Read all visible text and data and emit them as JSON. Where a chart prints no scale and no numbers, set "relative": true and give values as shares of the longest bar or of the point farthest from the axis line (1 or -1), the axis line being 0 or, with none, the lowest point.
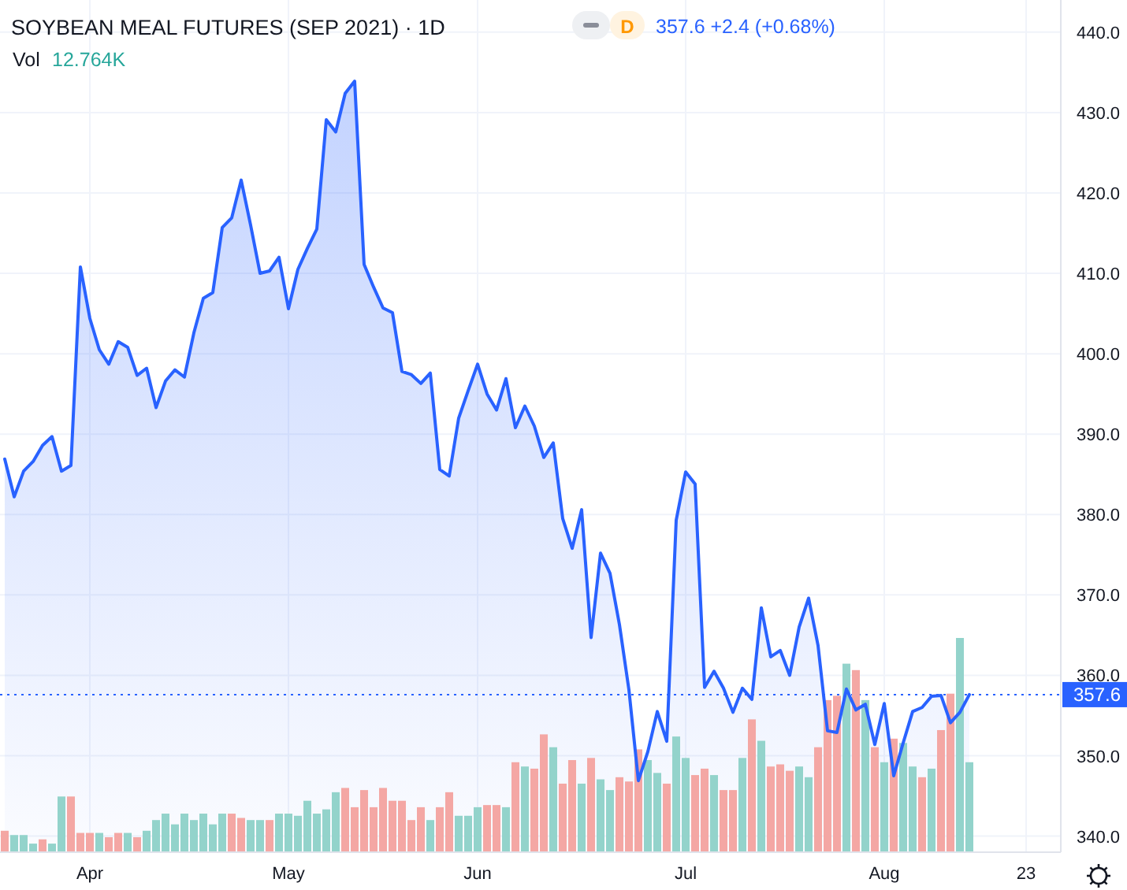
{
  "chart_data": [
    {
      "type": "area",
      "title": "SOYBEAN MEAL FUTURES (SEP 2021) · 1D",
      "annotations": [
        "D",
        "357.6 +2.4 (+0.68%)",
        "Vol",
        "12.764K"
      ],
      "categories": [
        null,
        null,
        null,
        null,
        null,
        null,
        null,
        null,
        null,
        "Apr",
        null,
        null,
        null,
        null,
        null,
        null,
        null,
        null,
        null,
        null,
        null,
        null,
        null,
        null,
        null,
        null,
        null,
        null,
        null,
        null,
        "May",
        null,
        null,
        null,
        null,
        null,
        null,
        null,
        null,
        null,
        null,
        null,
        null,
        null,
        null,
        null,
        null,
        null,
        null,
        null,
        "Jun",
        null,
        null,
        null,
        null,
        null,
        null,
        null,
        null,
        null,
        null,
        null,
        null,
        null,
        null,
        null,
        null,
        null,
        null,
        null,
        null,
        null,
        "Jul",
        null,
        null,
        null,
        null,
        null,
        null,
        null,
        null,
        null,
        null,
        null,
        null,
        null,
        null,
        null,
        null,
        null,
        null,
        null,
        null,
        "Aug",
        null,
        null,
        null,
        null,
        null,
        null,
        null,
        null,
        null,
        null,
        null,
        null,
        null,
        null,
        "23",
        null,
        null,
        null
      ],
      "color": "#2962ff",
      "values": [
        386.9,
        382.2,
        385.4,
        386.6,
        388.6,
        389.7,
        385.4,
        386.1,
        410.8,
        404.4,
        400.5,
        398.7,
        401.5,
        400.8,
        397.3,
        398.2,
        393.3,
        396.6,
        398.0,
        397.1,
        402.6,
        406.9,
        407.6,
        415.7,
        416.9,
        421.6,
        416.0,
        410.0,
        410.3,
        412.0,
        405.6,
        410.5,
        413.1,
        415.5,
        429.1,
        427.6,
        432.4,
        433.9,
        411.1,
        408.3,
        405.7,
        405.1,
        397.8,
        397.4,
        396.3,
        397.6,
        385.6,
        384.8,
        392.0,
        395.4,
        398.7,
        395.0,
        393.0,
        396.9,
        390.8,
        393.5,
        391.0,
        387.1,
        388.9,
        379.5,
        375.8,
        380.6,
        364.7,
        375.2,
        372.7,
        366.3,
        358.2,
        346.9,
        350.5,
        355.5,
        351.8,
        379.3,
        385.3,
        383.8,
        358.5,
        360.5,
        358.4,
        355.4,
        358.4,
        357.0,
        368.4,
        362.3,
        363.1,
        360.0,
        366.0,
        369.6,
        363.7,
        353.1,
        352.9,
        358.3,
        355.7,
        356.4,
        351.4,
        356.5,
        347.5,
        351.6,
        355.5,
        356.0,
        357.4,
        357.5,
        354.1,
        355.4,
        357.6,
        null,
        null,
        null,
        null,
        null,
        null,
        null,
        null,
        null
      ],
      "ylim": [
        338,
        444
      ],
      "yticks": [
        {
          "value": 340,
          "label": "340.0"
        },
        {
          "value": 350,
          "label": "350.0"
        },
        {
          "value": 360,
          "label": "360.0"
        },
        {
          "value": 370,
          "label": "370.0"
        },
        {
          "value": 380,
          "label": "380.0"
        },
        {
          "value": 390,
          "label": "390.0"
        },
        {
          "value": 400,
          "label": "400.0"
        },
        {
          "value": 410,
          "label": "410.0"
        },
        {
          "value": 420,
          "label": "420.0"
        },
        {
          "value": 430,
          "label": "430.0"
        },
        {
          "value": 440,
          "label": "440.0"
        }
      ],
      "ref_lines": [
        {
          "axis": "y",
          "value": 357.6,
          "label": "357.6",
          "color": "#2962ff",
          "line_style": "dotted"
        }
      ],
      "grid": true
    },
    {
      "type": "bar",
      "relative": true,
      "values": [
        0.1,
        0.08,
        0.08,
        0.04,
        0.06,
        0.04,
        0.26,
        0.26,
        0.09,
        0.09,
        0.09,
        0.07,
        0.09,
        0.09,
        0.07,
        0.1,
        0.15,
        0.18,
        0.13,
        0.18,
        0.15,
        0.18,
        0.13,
        0.18,
        0.18,
        0.16,
        0.15,
        0.15,
        0.15,
        0.18,
        0.18,
        0.17,
        0.24,
        0.18,
        0.2,
        0.28,
        0.3,
        0.21,
        0.29,
        0.21,
        0.3,
        0.24,
        0.24,
        0.15,
        0.21,
        0.15,
        0.21,
        0.28,
        0.17,
        0.17,
        0.21,
        0.22,
        0.22,
        0.21,
        0.42,
        0.4,
        0.39,
        0.55,
        0.49,
        0.32,
        0.43,
        0.32,
        0.44,
        0.34,
        0.29,
        0.35,
        0.33,
        0.48,
        0.43,
        0.37,
        0.32,
        0.54,
        0.44,
        0.36,
        0.39,
        0.36,
        0.29,
        0.29,
        0.44,
        0.62,
        0.52,
        0.4,
        0.41,
        0.38,
        0.4,
        0.35,
        0.49,
        0.71,
        0.73,
        0.88,
        0.85,
        0.71,
        0.49,
        0.42,
        0.53,
        0.51,
        0.4,
        0.35,
        0.39,
        0.57,
        0.74,
        1,
        0.42,
        null,
        null,
        null,
        null,
        null,
        null,
        null,
        null,
        null
      ],
      "colors": [
        "#f4a7a4",
        "#93d3cb",
        "#93d3cb",
        "#93d3cb",
        "#f4a7a4",
        "#93d3cb",
        "#93d3cb",
        "#f4a7a4",
        "#f4a7a4",
        "#f4a7a4",
        "#93d3cb",
        "#f4a7a4",
        "#f4a7a4",
        "#93d3cb",
        "#f4a7a4",
        "#93d3cb",
        "#93d3cb",
        "#93d3cb",
        "#93d3cb",
        "#93d3cb",
        "#93d3cb",
        "#93d3cb",
        "#93d3cb",
        "#93d3cb",
        "#f4a7a4",
        "#f4a7a4",
        "#93d3cb",
        "#93d3cb",
        "#f4a7a4",
        "#93d3cb",
        "#93d3cb",
        "#93d3cb",
        "#93d3cb",
        "#93d3cb",
        "#93d3cb",
        "#93d3cb",
        "#f4a7a4",
        "#f4a7a4",
        "#f4a7a4",
        "#f4a7a4",
        "#f4a7a4",
        "#f4a7a4",
        "#f4a7a4",
        "#f4a7a4",
        "#f4a7a4",
        "#93d3cb",
        "#f4a7a4",
        "#f4a7a4",
        "#93d3cb",
        "#93d3cb",
        "#93d3cb",
        "#f4a7a4",
        "#f4a7a4",
        "#93d3cb",
        "#f4a7a4",
        "#93d3cb",
        "#f4a7a4",
        "#f4a7a4",
        "#93d3cb",
        "#f4a7a4",
        "#f4a7a4",
        "#93d3cb",
        "#f4a7a4",
        "#93d3cb",
        "#93d3cb",
        "#f4a7a4",
        "#f4a7a4",
        "#f4a7a4",
        "#93d3cb",
        "#93d3cb",
        "#f4a7a4",
        "#93d3cb",
        "#93d3cb",
        "#f4a7a4",
        "#f4a7a4",
        "#93d3cb",
        "#f4a7a4",
        "#f4a7a4",
        "#93d3cb",
        "#f4a7a4",
        "#93d3cb",
        "#f4a7a4",
        "#f4a7a4",
        "#f4a7a4",
        "#93d3cb",
        "#93d3cb",
        "#f4a7a4",
        "#f4a7a4",
        "#f4a7a4",
        "#93d3cb",
        "#f4a7a4",
        "#93d3cb",
        "#f4a7a4",
        "#93d3cb",
        "#f4a7a4",
        "#93d3cb",
        "#93d3cb",
        "#f4a7a4",
        "#93d3cb",
        "#f4a7a4",
        "#f4a7a4",
        "#93d3cb",
        "#93d3cb",
        null,
        null,
        null,
        null,
        null,
        null,
        null,
        null,
        null
      ]
    }
  ]
}
